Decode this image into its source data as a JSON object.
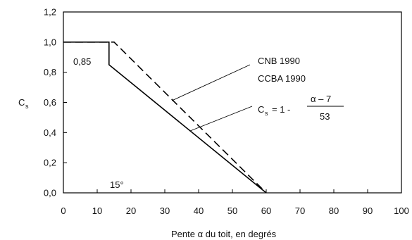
{
  "chart_data": {
    "type": "line",
    "xlabel": "Pente α du toit, en degrés",
    "ylabel": "C",
    "ylabel_sub": "s",
    "xlim": [
      0,
      100
    ],
    "ylim": [
      0.0,
      1.2
    ],
    "x_ticks": [
      0,
      10,
      20,
      30,
      40,
      50,
      60,
      70,
      80,
      90,
      100
    ],
    "y_ticks": [
      0.0,
      0.2,
      0.4,
      0.6,
      0.8,
      1.0,
      1.2
    ],
    "x_tick_labels": [
      "0",
      "10",
      "20",
      "30",
      "40",
      "50",
      "60",
      "70",
      "80",
      "90",
      "100"
    ],
    "y_tick_labels": [
      "0,0",
      "0,2",
      "0,4",
      "0,6",
      "0,8",
      "1,0",
      "1,2"
    ],
    "grid": false,
    "series": [
      {
        "name": "CNB 1990",
        "style": "dashed",
        "color": "#000000",
        "x": [
          0,
          15,
          60
        ],
        "y": [
          1.0,
          1.0,
          0.0
        ]
      },
      {
        "name": "CCBA 1990",
        "style": "solid",
        "color": "#000000",
        "x": [
          0,
          13.5,
          13.5,
          60
        ],
        "y": [
          1.0,
          1.0,
          0.85,
          0.0
        ]
      }
    ],
    "annotations": {
      "value_085": "0,85",
      "angle_15": "15°",
      "label_cnb": "CNB 1990",
      "label_ccba": "CCBA 1990",
      "formula_lhs": "C",
      "formula_sub": "s",
      "formula_eq": "= 1 -",
      "formula_num": "α – 7",
      "formula_den": "53"
    }
  }
}
